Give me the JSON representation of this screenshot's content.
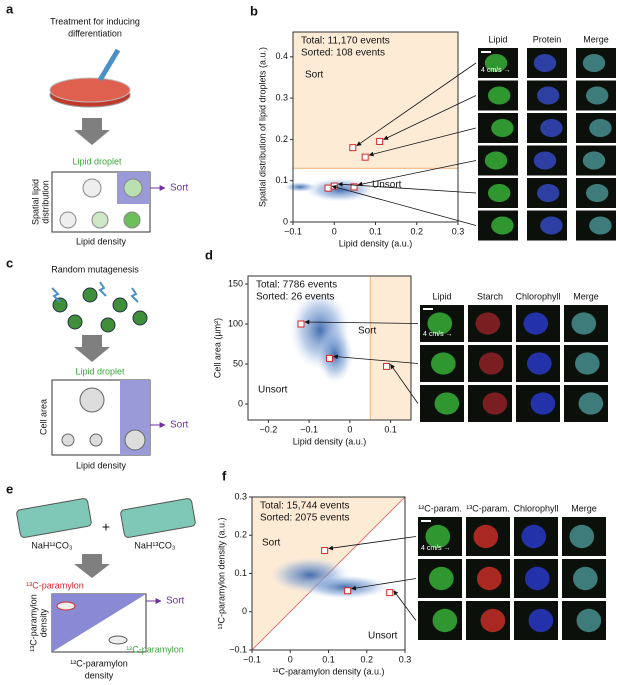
{
  "panels": {
    "a": {
      "label": "a",
      "title_lines": [
        "Treatment for inducing",
        "differentiation"
      ],
      "droplet": "Lipid droplet",
      "y_label_lines": [
        "Spatial lipid",
        "distribution"
      ],
      "sort": "Sort",
      "x_label": "Lipid density"
    },
    "c": {
      "label": "c",
      "title": "Random mutagenesis",
      "droplet": "Lipid droplet",
      "y_label": "Cell area",
      "sort": "Sort",
      "x_label": "Lipid density"
    },
    "e": {
      "label": "e",
      "left_reagent": "NaH¹²CO₃",
      "plus": "+",
      "right_reagent": "NaH¹³CO₃",
      "heavy": "¹³C-paramylon",
      "light": "¹²C-paramylon",
      "y_label_lines": [
        "¹³C-paramylon",
        "density"
      ],
      "x_label_lines": [
        "¹²C-paramylon",
        "density"
      ],
      "sort": "Sort"
    }
  },
  "images": [
    {
      "columns": [
        "Lipid",
        "Protein",
        "Merge"
      ],
      "speed": "4 cm/s →",
      "rows": 6
    },
    {
      "columns": [
        "Lipid",
        "Starch",
        "Chlorophyll",
        "Merge"
      ],
      "speed": "4 cm/s →",
      "rows": 3
    },
    {
      "columns": [
        "¹²C-param.",
        "¹³C-param.",
        "Chlorophyll",
        "Merge"
      ],
      "speed": "4 cm/s →",
      "rows": 3
    }
  ],
  "chart_data": [
    {
      "type": "scatter",
      "label": "b",
      "x_label": "Lipid density (a.u.)",
      "y_label": "Spatial distribution of lipid droplets (a.u.)",
      "annotations": [
        "Total: 11,170 events",
        "Sorted: 108 events"
      ],
      "sort_text": "Sort",
      "unsort_text": "Unsort",
      "x": [
        0.045,
        0.11,
        0.075,
        0.048,
        0.0,
        -0.015
      ],
      "values": [
        0.18,
        0.195,
        0.157,
        0.085,
        0.087,
        0.082
      ],
      "color": "#d62728",
      "sort_region": {
        "x": [
          -0.1,
          0.3
        ],
        "y": [
          0.13,
          0.46
        ]
      },
      "xlim": [
        -0.1,
        0.3
      ],
      "ylim": [
        0,
        0.46
      ],
      "xticks": [
        {
          "value": -0.1,
          "label": "−0.1"
        },
        0,
        0.1,
        0.2,
        0.3
      ],
      "yticks": [
        0,
        0.1,
        0.2,
        0.3,
        0.4
      ]
    },
    {
      "type": "scatter",
      "label": "d",
      "x_label": "Lipid density (a.u.)",
      "y_label": "Cell area (µm²)",
      "annotations": [
        "Total: 7786 events",
        "Sorted: 26 events"
      ],
      "sort_text": "Sort",
      "unsort_text": "Unsort",
      "x": [
        -0.12,
        -0.05,
        0.09
      ],
      "values": [
        100,
        57,
        47
      ],
      "color": "#d62728",
      "sort_region": {
        "x": [
          0.05,
          0.15
        ],
        "y": [
          -20,
          160
        ]
      },
      "xlim": [
        -0.25,
        0.15
      ],
      "ylim": [
        -20,
        160
      ],
      "xticks": [
        {
          "value": -0.2,
          "label": "−0.2"
        },
        {
          "value": -0.1,
          "label": "−0.1"
        },
        0,
        0.1
      ],
      "yticks": [
        0,
        50,
        100,
        150
      ]
    },
    {
      "type": "scatter",
      "label": "f",
      "x_label": "¹²C-paramylon density (a.u.)",
      "y_label": "¹³C-paramylon density (a.u.)",
      "annotations": [
        "Total: 15,744 events",
        "Sorted: 2075 events"
      ],
      "sort_text": "Sort",
      "unsort_text": "Unsort",
      "x": [
        0.09,
        0.15,
        0.26
      ],
      "values": [
        0.16,
        0.055,
        0.05
      ],
      "color": "#d62728",
      "gate_line": {
        "x": [
          -0.1,
          0.3
        ],
        "y": [
          -0.1,
          0.3
        ]
      },
      "xlim": [
        -0.1,
        0.3
      ],
      "ylim": [
        -0.1,
        0.3
      ],
      "xticks": [
        {
          "value": -0.1,
          "label": "−0.1"
        },
        0,
        0.1,
        0.2,
        0.3
      ],
      "yticks": [
        {
          "value": -0.1,
          "label": "−0.1"
        },
        0,
        0.1,
        0.2,
        0.3
      ]
    }
  ]
}
